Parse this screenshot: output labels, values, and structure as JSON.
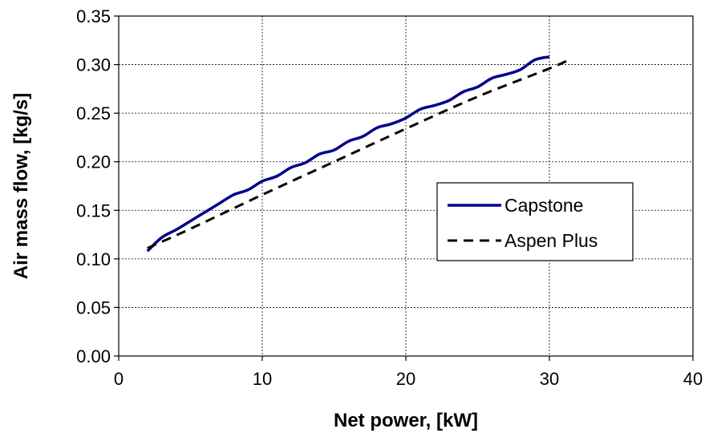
{
  "chart_data": {
    "type": "line",
    "title": "",
    "xlabel": "Net power, [kW]",
    "ylabel": "Air mass flow, [kg/s]",
    "xlim": [
      0,
      40
    ],
    "ylim": [
      0,
      0.35
    ],
    "x_ticks": [
      "0",
      "10",
      "20",
      "30",
      "40"
    ],
    "y_ticks": [
      "0.00",
      "0.05",
      "0.10",
      "0.15",
      "0.20",
      "0.25",
      "0.30",
      "0.35"
    ],
    "grid": true,
    "legend_position": "right",
    "series": [
      {
        "name": "Capstone",
        "color": "#00008b",
        "style": "solid",
        "x": [
          2,
          3,
          4,
          5,
          6,
          7,
          8,
          9,
          10,
          11,
          12,
          13,
          14,
          15,
          16,
          17,
          18,
          19,
          20,
          21,
          22,
          23,
          24,
          25,
          26,
          27,
          28,
          29,
          30
        ],
        "y": [
          0.108,
          0.122,
          0.13,
          0.139,
          0.148,
          0.157,
          0.166,
          0.171,
          0.18,
          0.185,
          0.194,
          0.199,
          0.208,
          0.212,
          0.221,
          0.226,
          0.235,
          0.239,
          0.245,
          0.254,
          0.258,
          0.263,
          0.272,
          0.277,
          0.286,
          0.29,
          0.295,
          0.305,
          0.308
        ]
      },
      {
        "name": "Aspen Plus",
        "color": "#000000",
        "style": "dashed",
        "x": [
          2,
          5,
          10,
          15,
          20,
          25,
          30,
          31.5
        ],
        "y": [
          0.111,
          0.131,
          0.166,
          0.2,
          0.234,
          0.267,
          0.296,
          0.306
        ]
      }
    ]
  }
}
